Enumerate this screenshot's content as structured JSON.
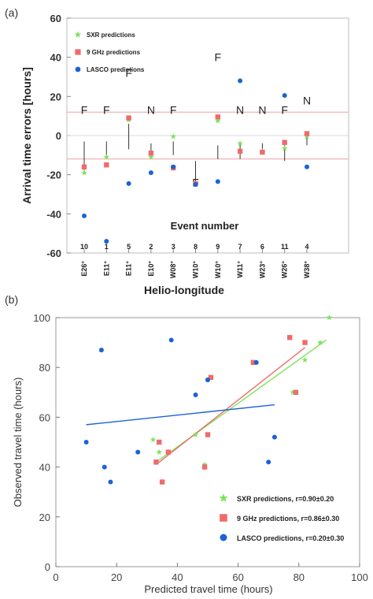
{
  "colors": {
    "sxr": "#7ee35a",
    "ghz": "#ee6b6b",
    "lasco": "#1a63d6",
    "guide": "#f4a0a0",
    "fit_sxr": "#7ee35a",
    "fit_ghz": "#ee6b6b",
    "fit_lasco": "#1a63d6"
  },
  "chart_data": [
    {
      "type": "scatter",
      "panel_label": "(a)",
      "ylabel": "Arrival time errors [hours]",
      "xlabel": "Helio-longitude",
      "ylim": [
        -60,
        60
      ],
      "yticks": [
        "60",
        "40",
        "20",
        "0",
        "-20",
        "-40",
        "-60"
      ],
      "ytick_values": [
        60,
        40,
        20,
        0,
        -20,
        -40,
        -60
      ],
      "guide_lines": [
        12,
        -12
      ],
      "grid": false,
      "legend_position": "top-left",
      "event_number_title": "Event number",
      "event_numbers": [
        "10",
        "1",
        "5",
        "2",
        "3",
        "8",
        "9",
        "7",
        "6",
        "11",
        "4"
      ],
      "categories": [
        "E26°",
        "E11°",
        "E11°",
        "E10°",
        "W08°",
        "W10°",
        "W10°",
        "W11°",
        "W23°",
        "W26°",
        "W38°"
      ],
      "class_labels": [
        "F",
        "F",
        "F",
        "N",
        "F",
        "F",
        "F",
        "N",
        "N",
        "F",
        "N"
      ],
      "class_label_y": [
        13,
        13,
        32,
        13,
        13,
        -24,
        40,
        13,
        13,
        13,
        18
      ],
      "range_top": [
        -3,
        -3,
        6,
        -4,
        -3,
        -13,
        -5,
        -4,
        -4,
        -3,
        0
      ],
      "range_bottom": [
        -19,
        -11,
        -7,
        -9,
        -10,
        -25,
        -12,
        -12,
        -9,
        -13,
        -5
      ],
      "series": [
        {
          "name": "SXR predictions",
          "marker": "star",
          "values": [
            -19,
            -11,
            8,
            -11,
            -0.5,
            -25,
            7.5,
            -4,
            -8,
            -6.5,
            -0.5
          ]
        },
        {
          "name": "9 GHz predictions",
          "marker": "square",
          "values": [
            -16,
            -15,
            9,
            -9,
            -16.5,
            -24.5,
            9.5,
            -8,
            -8.5,
            -3.5,
            1
          ]
        },
        {
          "name": "LASCO predictions",
          "marker": "circle",
          "values": [
            -41,
            -54,
            -24.5,
            -19,
            -16,
            -25,
            -23.5,
            28,
            null,
            20.5,
            -16
          ]
        }
      ]
    },
    {
      "type": "scatter",
      "panel_label": "(b)",
      "xlabel": "Predicted travel time (hours)",
      "ylabel": "Observed travel time (hours)",
      "xlim": [
        0,
        100
      ],
      "ylim": [
        0,
        100
      ],
      "xticks": [
        0,
        20,
        40,
        60,
        80,
        100
      ],
      "yticks": [
        0,
        20,
        40,
        60,
        80,
        100
      ],
      "grid": false,
      "legend_position": "bottom-right",
      "series": [
        {
          "name": "SXR predictions, r=0.90±0.20",
          "marker": "star",
          "x": [
            32,
            34,
            49,
            46,
            50,
            82,
            78,
            87,
            90
          ],
          "y": [
            51,
            46,
            41,
            53,
            75,
            83,
            70,
            90,
            100
          ],
          "fit": [
            [
              33,
              42
            ],
            [
              89,
              91
            ]
          ]
        },
        {
          "name": "9 GHz predictions, r=0.86±0.30",
          "marker": "square",
          "x": [
            33,
            34,
            35,
            37,
            49,
            50,
            51,
            65,
            77,
            79,
            82
          ],
          "y": [
            42,
            50,
            34,
            46,
            40,
            53,
            76,
            82,
            92,
            70,
            90
          ],
          "fit": [
            [
              33,
              41
            ],
            [
              82,
              88
            ]
          ]
        },
        {
          "name": "LASCO predictions, r=0.20±0.30",
          "marker": "circle",
          "x": [
            10,
            15,
            16,
            18,
            27,
            38,
            46,
            50,
            66,
            70,
            72
          ],
          "y": [
            50,
            87,
            40,
            34,
            46,
            91,
            69,
            75,
            82,
            42,
            52
          ],
          "fit": [
            [
              10,
              57
            ],
            [
              72,
              65
            ]
          ]
        }
      ]
    }
  ]
}
